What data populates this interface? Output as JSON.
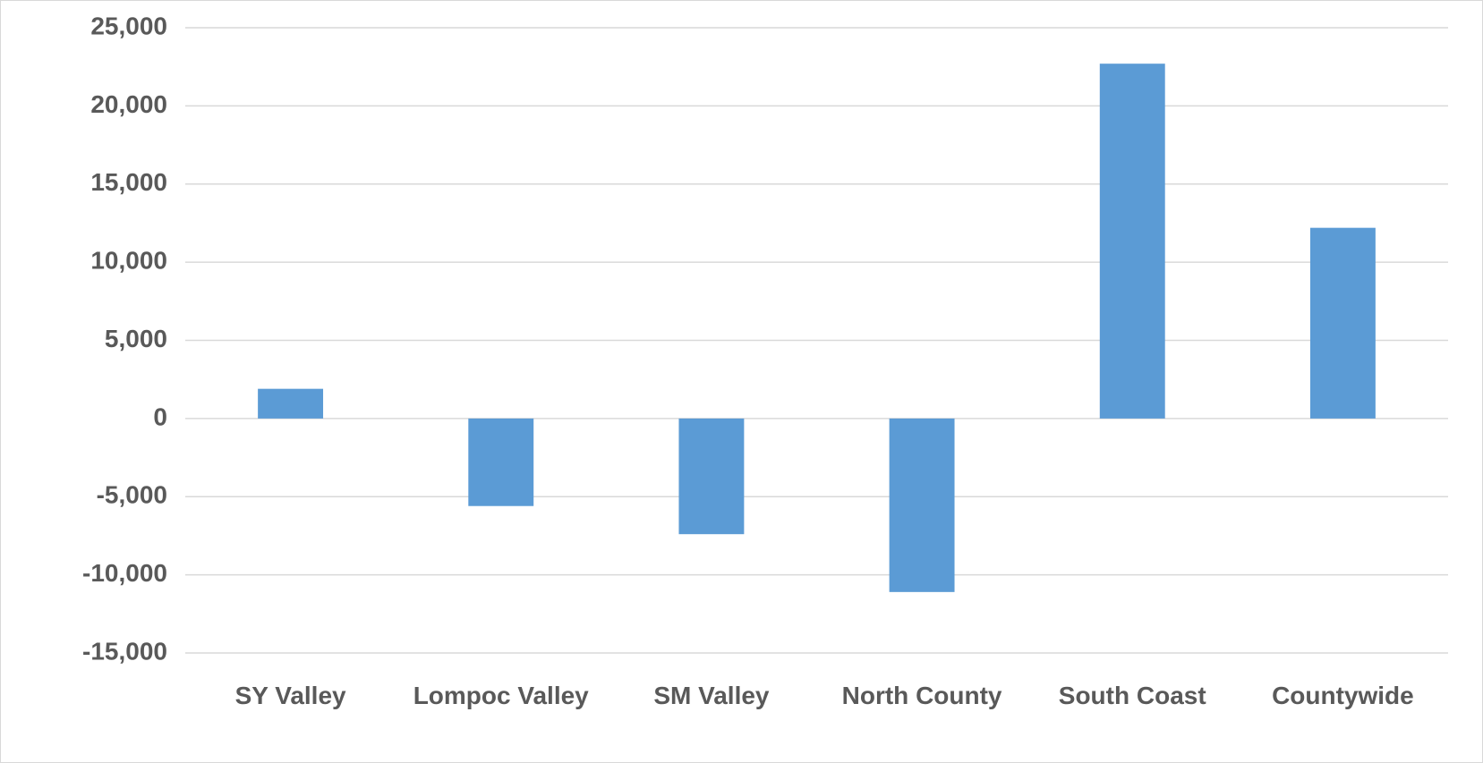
{
  "chart_data": {
    "type": "bar",
    "categories": [
      "SY Valley",
      "Lompoc Valley",
      "SM Valley",
      "North County",
      "South Coast",
      "Countywide"
    ],
    "values": [
      1900,
      -5600,
      -7400,
      -11100,
      22700,
      12200
    ],
    "color": "#5b9bd5",
    "ylim": [
      -15000,
      25000
    ],
    "yticks": [
      {
        "value": -15000,
        "label": "-15,000"
      },
      {
        "value": -10000,
        "label": "-10,000"
      },
      {
        "value": -5000,
        "label": "-5,000"
      },
      0,
      {
        "value": 5000,
        "label": "5,000"
      },
      {
        "value": 10000,
        "label": "10,000"
      },
      {
        "value": 15000,
        "label": "15,000"
      },
      {
        "value": 20000,
        "label": "20,000"
      },
      {
        "value": 25000,
        "label": "25,000"
      }
    ],
    "grid": true
  }
}
